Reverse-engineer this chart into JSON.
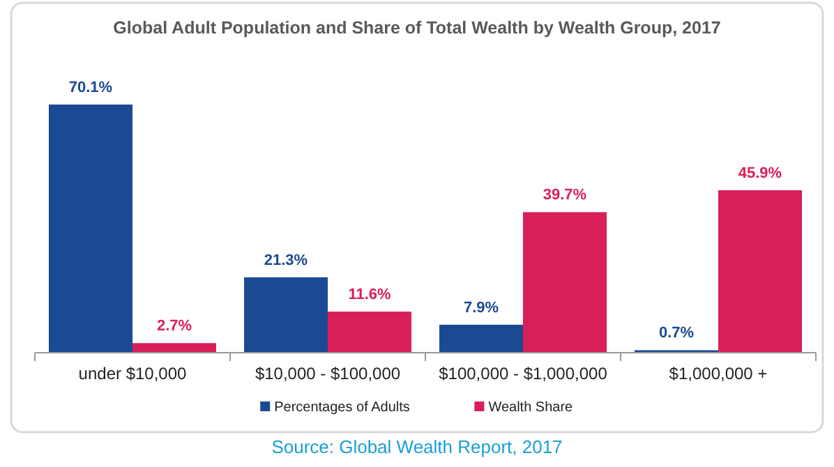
{
  "chart_data": {
    "type": "bar",
    "title": "Global Adult Population and Share of Total Wealth by Wealth Group, 2017",
    "categories": [
      "under $10,000",
      "$10,000 - $100,000",
      "$100,000 - $1,000,000",
      "$1,000,000 +"
    ],
    "series": [
      {
        "name": "Percentages of Adults",
        "color": "#1b4a94",
        "values": [
          70.1,
          21.3,
          7.9,
          0.7
        ],
        "value_labels": [
          "70.1%",
          "21.3%",
          "7.9%",
          "0.7%"
        ]
      },
      {
        "name": "Wealth Share",
        "color": "#d81f58",
        "values": [
          2.7,
          11.6,
          39.7,
          45.9
        ],
        "value_labels": [
          "2.7%",
          "11.6%",
          "39.7%",
          "45.9%"
        ]
      }
    ],
    "legend": "bottom",
    "annotations": [
      "Source: Global Wealth Report, 2017"
    ]
  }
}
